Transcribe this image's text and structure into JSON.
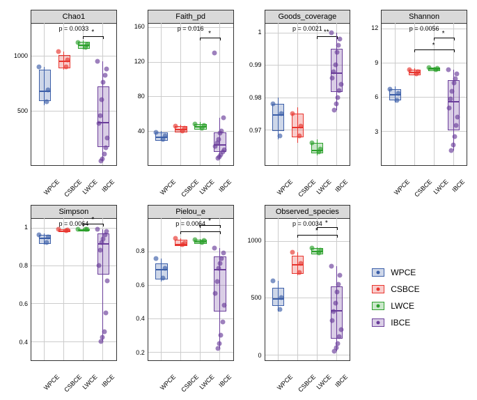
{
  "groups": [
    "WPCE",
    "CSBCE",
    "LWCE",
    "IBCE"
  ],
  "colors": {
    "WPCE": "#3b5ea8",
    "CSBCE": "#e8352e",
    "LWCE": "#2ca02c",
    "IBCE": "#6a3d9a"
  },
  "fill_alpha": 0.25,
  "background_color": "#ffffff",
  "grid_color": "#cccccc",
  "strip_bg": "#d9d9d9",
  "panels": [
    {
      "title": "Chao1",
      "p_text": "p = 0.0033",
      "ylim": [
        0,
        1300
      ],
      "yticks": [
        500,
        1000
      ],
      "sig": [
        {
          "from": 2,
          "to": 3,
          "stars": "*",
          "y": 1180
        }
      ],
      "boxes": [
        {
          "g": 0,
          "q1": 600,
          "med": 690,
          "q3": 870,
          "lo": 550,
          "hi": 900,
          "pts": [
            900,
            690,
            580
          ]
        },
        {
          "g": 1,
          "q1": 900,
          "med": 960,
          "q3": 1010,
          "lo": 870,
          "hi": 1040,
          "pts": [
            1040,
            960,
            900
          ]
        },
        {
          "g": 2,
          "q1": 1080,
          "med": 1110,
          "q3": 1130,
          "lo": 1060,
          "hi": 1140,
          "pts": [
            1120,
            1100,
            1080
          ]
        },
        {
          "g": 3,
          "q1": 180,
          "med": 400,
          "q3": 720,
          "lo": 40,
          "hi": 950,
          "pts": [
            950,
            880,
            820,
            760,
            600,
            450,
            380,
            250,
            160,
            100,
            60,
            40
          ]
        }
      ]
    },
    {
      "title": "Faith_pd",
      "p_text": "p = 0.016",
      "ylim": [
        0,
        165
      ],
      "yticks": [
        40,
        80,
        120,
        160
      ],
      "sig": [
        {
          "from": 2,
          "to": 3,
          "stars": "*",
          "y": 148
        }
      ],
      "boxes": [
        {
          "g": 0,
          "q1": 30,
          "med": 34,
          "q3": 38,
          "lo": 28,
          "hi": 40,
          "pts": [
            38,
            34,
            30
          ]
        },
        {
          "g": 1,
          "q1": 40,
          "med": 43,
          "q3": 45,
          "lo": 38,
          "hi": 47,
          "pts": [
            45,
            43,
            40
          ]
        },
        {
          "g": 2,
          "q1": 43,
          "med": 46,
          "q3": 48,
          "lo": 41,
          "hi": 50,
          "pts": [
            48,
            46,
            43
          ]
        },
        {
          "g": 3,
          "q1": 17,
          "med": 25,
          "q3": 38,
          "lo": 8,
          "hi": 55,
          "pts": [
            130,
            55,
            40,
            37,
            30,
            26,
            22,
            18,
            15,
            12,
            10,
            8
          ]
        }
      ]
    },
    {
      "title": "Goods_coverage",
      "p_text": "p = 0.0021",
      "ylim": [
        0.959,
        1.003
      ],
      "yticks": [
        0.97,
        0.98,
        0.99,
        1.0
      ],
      "sig": [
        {
          "from": 2,
          "to": 3,
          "stars": "**",
          "y": 0.999
        }
      ],
      "boxes": [
        {
          "g": 0,
          "q1": 0.97,
          "med": 0.975,
          "q3": 0.978,
          "lo": 0.967,
          "hi": 0.98,
          "pts": [
            0.978,
            0.975,
            0.968
          ]
        },
        {
          "g": 1,
          "q1": 0.968,
          "med": 0.971,
          "q3": 0.975,
          "lo": 0.966,
          "hi": 0.977,
          "pts": [
            0.975,
            0.971,
            0.968
          ]
        },
        {
          "g": 2,
          "q1": 0.963,
          "med": 0.964,
          "q3": 0.966,
          "lo": 0.962,
          "hi": 0.967,
          "pts": [
            0.966,
            0.964,
            0.963
          ]
        },
        {
          "g": 3,
          "q1": 0.982,
          "med": 0.988,
          "q3": 0.995,
          "lo": 0.976,
          "hi": 1.0,
          "pts": [
            1.0,
            0.998,
            0.996,
            0.994,
            0.99,
            0.988,
            0.986,
            0.984,
            0.982,
            0.98,
            0.978,
            0.976
          ]
        }
      ]
    },
    {
      "title": "Shannon",
      "p_text": "p = 0.0056",
      "ylim": [
        0,
        12.5
      ],
      "yticks": [
        3,
        6,
        9,
        12
      ],
      "sig": [
        {
          "from": 1,
          "to": 3,
          "stars": "*",
          "y": 10.2
        },
        {
          "from": 2,
          "to": 3,
          "stars": "*",
          "y": 11.2
        }
      ],
      "boxes": [
        {
          "g": 0,
          "q1": 5.8,
          "med": 6.3,
          "q3": 6.7,
          "lo": 5.5,
          "hi": 6.9,
          "pts": [
            6.7,
            6.3,
            5.7
          ]
        },
        {
          "g": 1,
          "q1": 8.0,
          "med": 8.25,
          "q3": 8.4,
          "lo": 7.9,
          "hi": 8.5,
          "pts": [
            8.4,
            8.2,
            8.0
          ]
        },
        {
          "g": 2,
          "q1": 8.4,
          "med": 8.55,
          "q3": 8.6,
          "lo": 8.35,
          "hi": 8.65,
          "pts": [
            8.6,
            8.5,
            8.4
          ]
        },
        {
          "g": 3,
          "q1": 3.2,
          "med": 5.7,
          "q3": 7.5,
          "lo": 1.3,
          "hi": 8.4,
          "pts": [
            8.4,
            8.0,
            7.6,
            7.2,
            6.5,
            5.8,
            5.0,
            4.2,
            3.5,
            2.5,
            1.8,
            1.3
          ]
        }
      ]
    },
    {
      "title": "Simpson",
      "p_text": "p = 0.0064",
      "ylim": [
        0.3,
        1.05
      ],
      "yticks": [
        0.4,
        0.6,
        0.8,
        1.0
      ],
      "sig": [
        {
          "from": 2,
          "to": 3,
          "stars": "*",
          "y": 1.02
        }
      ],
      "boxes": [
        {
          "g": 0,
          "q1": 0.92,
          "med": 0.95,
          "q3": 0.96,
          "lo": 0.91,
          "hi": 0.97,
          "pts": [
            0.96,
            0.95,
            0.92
          ]
        },
        {
          "g": 1,
          "q1": 0.985,
          "med": 0.988,
          "q3": 0.99,
          "lo": 0.983,
          "hi": 0.992,
          "pts": [
            0.99,
            0.988,
            0.985
          ]
        },
        {
          "g": 2,
          "q1": 0.99,
          "med": 0.992,
          "q3": 0.993,
          "lo": 0.988,
          "hi": 0.994,
          "pts": [
            0.993,
            0.992,
            0.99
          ]
        },
        {
          "g": 3,
          "q1": 0.76,
          "med": 0.92,
          "q3": 0.97,
          "lo": 0.4,
          "hi": 0.99,
          "pts": [
            0.99,
            0.98,
            0.96,
            0.94,
            0.92,
            0.88,
            0.8,
            0.72,
            0.55,
            0.45,
            0.42,
            0.4
          ]
        }
      ]
    },
    {
      "title": "Pielou_e",
      "p_text": "p = 0.0064",
      "ylim": [
        0.15,
        1.0
      ],
      "yticks": [
        0.2,
        0.4,
        0.6,
        0.8
      ],
      "sig": [
        {
          "from": 1,
          "to": 3,
          "stars": "*",
          "y": 0.92
        },
        {
          "from": 2,
          "to": 3,
          "stars": "*",
          "y": 0.96
        }
      ],
      "boxes": [
        {
          "g": 0,
          "q1": 0.64,
          "med": 0.7,
          "q3": 0.73,
          "lo": 0.62,
          "hi": 0.76,
          "pts": [
            0.76,
            0.7,
            0.64
          ]
        },
        {
          "g": 1,
          "q1": 0.84,
          "med": 0.85,
          "q3": 0.87,
          "lo": 0.83,
          "hi": 0.88,
          "pts": [
            0.88,
            0.85,
            0.84
          ]
        },
        {
          "g": 2,
          "q1": 0.855,
          "med": 0.865,
          "q3": 0.87,
          "lo": 0.85,
          "hi": 0.875,
          "pts": [
            0.87,
            0.865,
            0.855
          ]
        },
        {
          "g": 3,
          "q1": 0.45,
          "med": 0.7,
          "q3": 0.77,
          "lo": 0.22,
          "hi": 0.82,
          "pts": [
            0.82,
            0.79,
            0.76,
            0.73,
            0.7,
            0.62,
            0.55,
            0.48,
            0.38,
            0.3,
            0.25,
            0.22
          ]
        }
      ]
    },
    {
      "title": "Observed_species",
      "p_text": "p = 0.0034",
      "ylim": [
        -50,
        1200
      ],
      "yticks": [
        0,
        500,
        1000
      ],
      "sig": [
        {
          "from": 1,
          "to": 3,
          "stars": "*",
          "y": 1050
        },
        {
          "from": 2,
          "to": 3,
          "stars": "*",
          "y": 1120
        }
      ],
      "boxes": [
        {
          "g": 0,
          "q1": 440,
          "med": 500,
          "q3": 590,
          "lo": 380,
          "hi": 650,
          "pts": [
            650,
            500,
            400
          ]
        },
        {
          "g": 1,
          "q1": 720,
          "med": 800,
          "q3": 870,
          "lo": 700,
          "hi": 900,
          "pts": [
            900,
            800,
            720
          ]
        },
        {
          "g": 2,
          "q1": 895,
          "med": 920,
          "q3": 935,
          "lo": 885,
          "hi": 945,
          "pts": [
            935,
            920,
            895
          ]
        },
        {
          "g": 3,
          "q1": 150,
          "med": 400,
          "q3": 600,
          "lo": 30,
          "hi": 780,
          "pts": [
            780,
            700,
            620,
            550,
            450,
            380,
            300,
            220,
            160,
            100,
            60,
            30
          ]
        }
      ]
    }
  ]
}
